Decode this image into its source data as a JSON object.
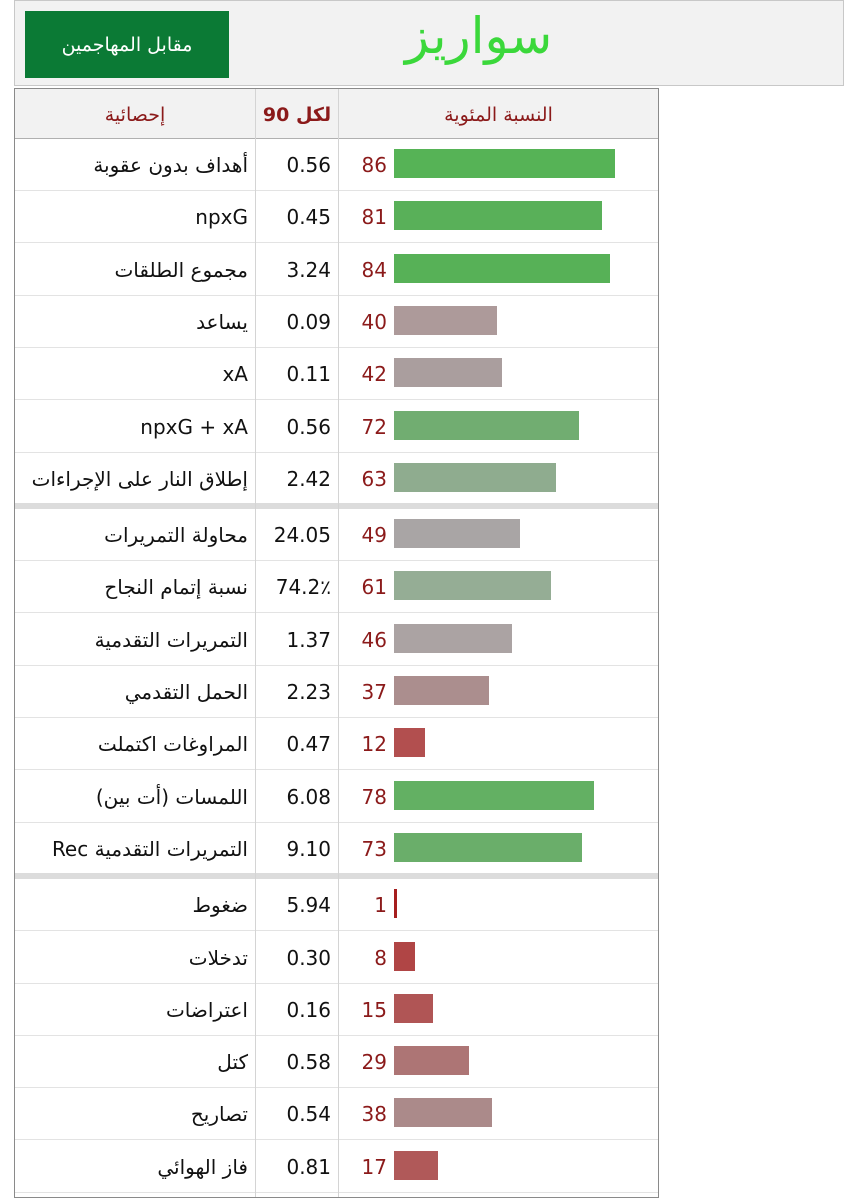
{
  "header": {
    "title": "سواريز",
    "compare_button_label": "مقابل المهاجمين"
  },
  "table": {
    "columns": {
      "stat": "إحصائية",
      "per90": "لكل 90",
      "percentile": "النسبة المئوية"
    },
    "groups": [
      [
        {
          "stat": "أهداف بدون عقوبة",
          "per90": "0.56",
          "pct": 86,
          "color": "#56b356"
        },
        {
          "stat": "npxG",
          "per90": "0.45",
          "pct": 81,
          "color": "#59b059"
        },
        {
          "stat": "مجموع الطلقات",
          "per90": "3.24",
          "pct": 84,
          "color": "#57b157"
        },
        {
          "stat": "يساعد",
          "per90": "0.09",
          "pct": 40,
          "color": "#ad9a9a"
        },
        {
          "stat": "xA",
          "per90": "0.11",
          "pct": 42,
          "color": "#aa9e9e"
        },
        {
          "stat": "npxG + xA",
          "per90": "0.56",
          "pct": 72,
          "color": "#71ad71"
        },
        {
          "stat": "إطلاق النار على الإجراءات",
          "per90": "2.42",
          "pct": 63,
          "color": "#8fac8f"
        }
      ],
      [
        {
          "stat": "محاولة التمريرات",
          "per90": "24.05",
          "pct": 49,
          "color": "#a9a5a5"
        },
        {
          "stat": "نسبة إتمام النجاح",
          "per90": "74.2٪",
          "pct": 61,
          "color": "#95ad95"
        },
        {
          "stat": "التمريرات التقدمية",
          "per90": "1.37",
          "pct": 46,
          "color": "#aba3a3"
        },
        {
          "stat": "الحمل التقدمي",
          "per90": "2.23",
          "pct": 37,
          "color": "#ab8e8e"
        },
        {
          "stat": "المراوغات اكتملت",
          "per90": "0.47",
          "pct": 12,
          "color": "#b24f4f"
        },
        {
          "stat": "اللمسات (أت بين)",
          "per90": "6.08",
          "pct": 78,
          "color": "#63b063"
        },
        {
          "stat": "Rec التمريرات التقدمية",
          "per90": "9.10",
          "pct": 73,
          "color": "#6aae6a"
        }
      ],
      [
        {
          "stat": "ضغوط",
          "per90": "5.94",
          "pct": 1,
          "color": "#a61e1e"
        },
        {
          "stat": "تدخلات",
          "per90": "0.30",
          "pct": 8,
          "color": "#b04545"
        },
        {
          "stat": "اعتراضات",
          "per90": "0.16",
          "pct": 15,
          "color": "#b05555"
        },
        {
          "stat": "كتل",
          "per90": "0.58",
          "pct": 29,
          "color": "#ad7575"
        },
        {
          "stat": "تصاريح",
          "per90": "0.54",
          "pct": 38,
          "color": "#ab8a8a"
        },
        {
          "stat": "فاز الهوائي",
          "per90": "0.81",
          "pct": 17,
          "color": "#b05959"
        }
      ]
    ]
  }
}
